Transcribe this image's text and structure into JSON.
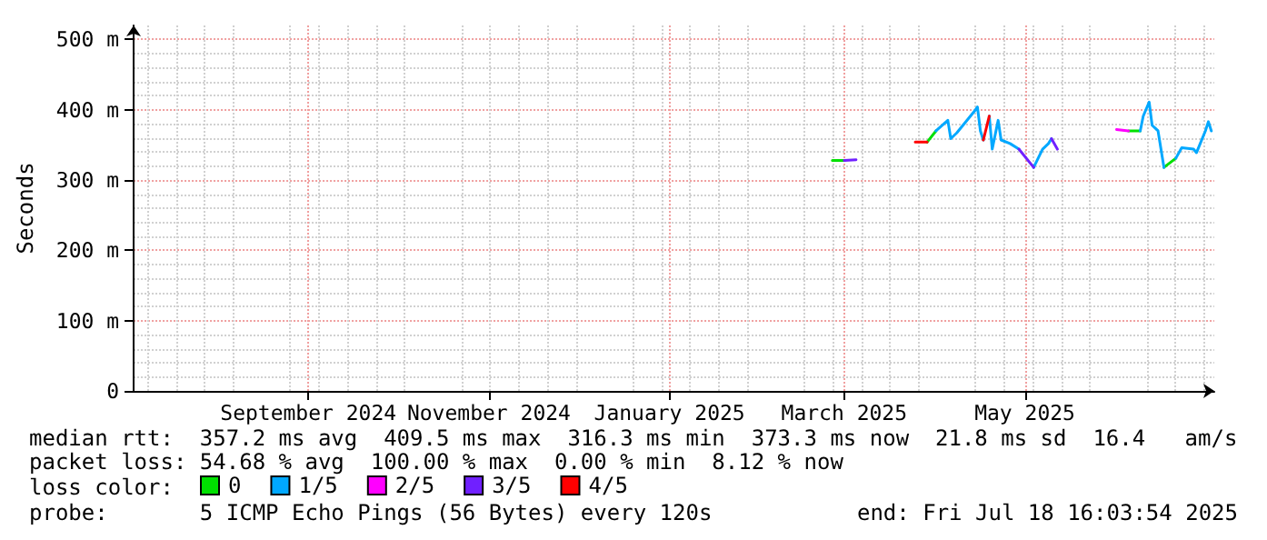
{
  "chart_data": {
    "type": "line",
    "ylabel": "Seconds",
    "legend_title": "loss color:",
    "xlim": [
      "2024-07-18",
      "2025-07-18"
    ],
    "ylim": [
      0,
      520
    ],
    "xticks": [
      {
        "value": "2024-09-15",
        "label": "September 2024"
      },
      {
        "value": "2024-11-15",
        "label": "November 2024"
      },
      {
        "value": "2025-01-15",
        "label": "January 2025"
      },
      {
        "value": "2025-03-15",
        "label": "March 2025"
      },
      {
        "value": "2025-05-15",
        "label": "May 2025"
      }
    ],
    "yticks": [
      0,
      {
        "value": 100,
        "label": "100 m"
      },
      {
        "value": 200,
        "label": "200 m"
      },
      {
        "value": 300,
        "label": "300 m"
      },
      {
        "value": 400,
        "label": "400 m"
      },
      {
        "value": 500,
        "label": "500 m"
      }
    ],
    "grid": true,
    "legend": "bottom left",
    "marker": "none",
    "line_style": "solid",
    "series": [
      {
        "name": "0",
        "color": "#00e000",
        "x": [
          "2025-03-11",
          "2025-03-15",
          "2025-03-25",
          "2025-04-12",
          "2025-04-15",
          "2025-05-01",
          "2025-06-19",
          "2025-06-23",
          "2025-06-25",
          "2025-07-01",
          "2025-07-05"
        ],
        "values": [
          328,
          328,
          null,
          354,
          370,
          null,
          370,
          370,
          null,
          318,
          331
        ]
      },
      {
        "name": "1/5",
        "color": "#00a8ff",
        "x": [
          "2025-04-15",
          "2025-04-19",
          "2025-04-20",
          "2025-04-22",
          "2025-04-28",
          "2025-04-29",
          "2025-04-30",
          "2025-05-01",
          "2025-05-02",
          "2025-05-03",
          "2025-05-04",
          "2025-05-06",
          "2025-05-07",
          "2025-05-10",
          "2025-05-13",
          "2025-05-15",
          "2025-05-18",
          "2025-05-21",
          "2025-05-23",
          "2025-05-24",
          "2025-06-10",
          "2025-06-23",
          "2025-06-24",
          "2025-06-26",
          "2025-06-27",
          "2025-06-29",
          "2025-07-01",
          "2025-07-03",
          "2025-07-05",
          "2025-07-07",
          "2025-07-11",
          "2025-07-12",
          "2025-07-15",
          "2025-07-16",
          "2025-07-17"
        ],
        "values": [
          370,
          385,
          359,
          367,
          398,
          404,
          370,
          357,
          null,
          391,
          344,
          385,
          357,
          352,
          344,
          null,
          318,
          344,
          352,
          359,
          null,
          370,
          391,
          411,
          378,
          370,
          318,
          null,
          331,
          346,
          344,
          339,
          370,
          383,
          370
        ]
      },
      {
        "name": "2/5",
        "color": "#ff00ff",
        "x": [
          "2025-06-15",
          "2025-06-19"
        ],
        "values": [
          372,
          370
        ]
      },
      {
        "name": "3/5",
        "color": "#7020ff",
        "x": [
          "2025-03-15",
          "2025-03-19",
          "2025-04-01",
          "2025-05-13",
          "2025-05-18",
          "2025-05-20",
          "2025-05-24",
          "2025-05-26"
        ],
        "values": [
          328,
          329,
          null,
          344,
          318,
          null,
          359,
          344
        ]
      },
      {
        "name": "4/5",
        "color": "#ff0000",
        "x": [
          "2025-04-08",
          "2025-04-12",
          "2025-04-20",
          "2025-05-01",
          "2025-05-03"
        ],
        "values": [
          354,
          354,
          null,
          357,
          391
        ]
      }
    ],
    "annotations": [
      "median rtt:  357.2 ms avg  409.5 ms max  316.3 ms min  373.3 ms now  21.8 ms sd  16.4   am/s",
      "packet loss: 54.68 % avg  100.00 % max  0.00 % min  8.12 % now",
      "probe:       5 ICMP Echo Pings (56 Bytes) every 120s",
      "end: Fri Jul 18 16:03:54 2025"
    ]
  }
}
